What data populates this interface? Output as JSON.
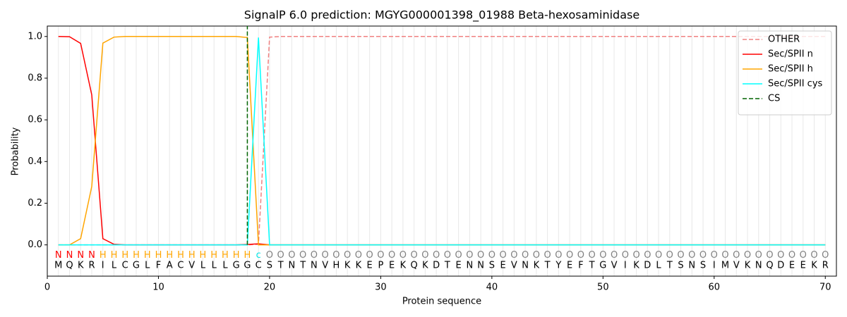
{
  "chart_data": {
    "type": "line",
    "title": "SignalP 6.0 prediction: MGYG000001398_01988 Beta-hexosaminidase",
    "xlabel": "Protein sequence",
    "ylabel": "Probability",
    "x": [
      1,
      2,
      3,
      4,
      5,
      6,
      7,
      8,
      9,
      10,
      11,
      12,
      13,
      14,
      15,
      16,
      17,
      18,
      19,
      20,
      21,
      22,
      23,
      24,
      25,
      26,
      27,
      28,
      29,
      30,
      31,
      32,
      33,
      34,
      35,
      36,
      37,
      38,
      39,
      40,
      41,
      42,
      43,
      44,
      45,
      46,
      47,
      48,
      49,
      50,
      51,
      52,
      53,
      54,
      55,
      56,
      57,
      58,
      59,
      60,
      61,
      62,
      63,
      64,
      65,
      66,
      67,
      68,
      69,
      70
    ],
    "xlim": [
      0,
      71
    ],
    "xticks": [
      0,
      10,
      20,
      30,
      40,
      50,
      60,
      70
    ],
    "ylim": [
      -0.15,
      1.05
    ],
    "yticks": [
      {
        "value": 0,
        "label": "0.0"
      },
      0.2,
      0.4,
      0.6,
      0.8,
      {
        "value": 1,
        "label": "1.0"
      }
    ],
    "position_grid": true,
    "legend": "upper right",
    "sequence": [
      "M",
      "Q",
      "K",
      "R",
      "I",
      "L",
      "C",
      "G",
      "L",
      "F",
      "A",
      "C",
      "V",
      "L",
      "L",
      "L",
      "G",
      "G",
      "C",
      "S",
      "T",
      "N",
      "T",
      "N",
      "V",
      "H",
      "K",
      "K",
      "E",
      "P",
      "E",
      "K",
      "Q",
      "K",
      "D",
      "T",
      "E",
      "N",
      "N",
      "S",
      "E",
      "V",
      "N",
      "K",
      "T",
      "Y",
      "E",
      "F",
      "T",
      "G",
      "V",
      "I",
      "K",
      "D",
      "L",
      "T",
      "S",
      "N",
      "S",
      "I",
      "M",
      "V",
      "K",
      "N",
      "Q",
      "D",
      "E",
      "E",
      "K",
      "R"
    ],
    "labels": [
      "N",
      "N",
      "N",
      "N",
      "H",
      "H",
      "H",
      "H",
      "H",
      "H",
      "H",
      "H",
      "H",
      "H",
      "H",
      "H",
      "H",
      "H",
      "c",
      "O",
      "O",
      "O",
      "O",
      "O",
      "O",
      "O",
      "O",
      "O",
      "O",
      "O",
      "O",
      "O",
      "O",
      "O",
      "O",
      "O",
      "O",
      "O",
      "O",
      "O",
      "O",
      "O",
      "O",
      "O",
      "O",
      "O",
      "O",
      "O",
      "O",
      "O",
      "O",
      "O",
      "O",
      "O",
      "O",
      "O",
      "O",
      "O",
      "O",
      "O",
      "O",
      "O",
      "O",
      "O",
      "O",
      "O",
      "O",
      "O",
      "O",
      "O"
    ],
    "label_colors": {
      "N": "#ff0000",
      "H": "#ffa500",
      "c": "#00e5e5",
      "O": "#808080"
    },
    "series": [
      {
        "name": "OTHER",
        "color": "#f08080",
        "dash": true,
        "values": [
          0,
          0,
          0,
          0,
          0,
          0,
          0,
          0,
          0,
          0,
          0,
          0,
          0,
          0,
          0,
          0,
          0,
          0,
          0.003,
          0.997,
          1,
          1,
          1,
          1,
          1,
          1,
          1,
          1,
          1,
          1,
          1,
          1,
          1,
          1,
          1,
          1,
          1,
          1,
          1,
          1,
          1,
          1,
          1,
          1,
          1,
          1,
          1,
          1,
          1,
          1,
          1,
          1,
          1,
          1,
          1,
          1,
          1,
          1,
          1,
          1,
          1,
          1,
          1,
          1,
          1,
          1,
          1,
          1,
          1,
          1
        ]
      },
      {
        "name": "Sec/SPII n",
        "color": "#ff0000",
        "dash": false,
        "values": [
          1,
          0.999,
          0.967,
          0.72,
          0.03,
          0.003,
          0,
          0,
          0,
          0,
          0,
          0,
          0,
          0,
          0,
          0,
          0,
          0.002,
          0.005,
          0,
          0,
          0,
          0,
          0,
          0,
          0,
          0,
          0,
          0,
          0,
          0,
          0,
          0,
          0,
          0,
          0,
          0,
          0,
          0,
          0,
          0,
          0,
          0,
          0,
          0,
          0,
          0,
          0,
          0,
          0,
          0,
          0,
          0,
          0,
          0,
          0,
          0,
          0,
          0,
          0,
          0,
          0,
          0,
          0,
          0,
          0,
          0,
          0,
          0,
          0
        ]
      },
      {
        "name": "Sec/SPII h",
        "color": "#ffa500",
        "dash": false,
        "values": [
          0,
          0,
          0.03,
          0.28,
          0.968,
          0.997,
          1,
          1,
          1,
          1,
          1,
          1,
          1,
          1,
          1,
          1,
          1,
          0.995,
          0,
          0,
          0,
          0,
          0,
          0,
          0,
          0,
          0,
          0,
          0,
          0,
          0,
          0,
          0,
          0,
          0,
          0,
          0,
          0,
          0,
          0,
          0,
          0,
          0,
          0,
          0,
          0,
          0,
          0,
          0,
          0,
          0,
          0,
          0,
          0,
          0,
          0,
          0,
          0,
          0,
          0,
          0,
          0,
          0,
          0,
          0,
          0,
          0,
          0,
          0,
          0
        ]
      },
      {
        "name": "Sec/SPII cys",
        "color": "#00ffff",
        "dash": false,
        "values": [
          0,
          0,
          0,
          0,
          0,
          0,
          0,
          0,
          0,
          0,
          0,
          0,
          0,
          0,
          0,
          0,
          0,
          0,
          0.995,
          0,
          0,
          0,
          0,
          0,
          0,
          0,
          0,
          0,
          0,
          0,
          0,
          0,
          0,
          0,
          0,
          0,
          0,
          0,
          0,
          0,
          0,
          0,
          0,
          0,
          0,
          0,
          0,
          0,
          0,
          0,
          0,
          0,
          0,
          0,
          0,
          0,
          0,
          0,
          0,
          0,
          0,
          0,
          0,
          0,
          0,
          0,
          0,
          0,
          0,
          0
        ]
      }
    ],
    "cs": {
      "name": "CS",
      "x": 18,
      "color": "#006400"
    }
  }
}
